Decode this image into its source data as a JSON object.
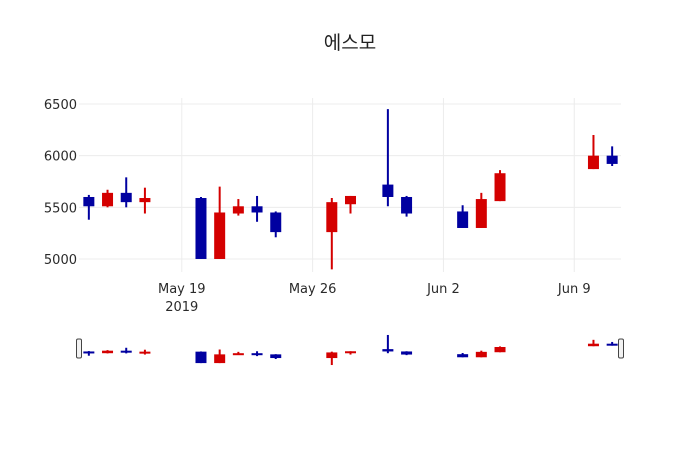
{
  "title": "에스모",
  "colors": {
    "increasing": "#d40000",
    "decreasing": "#0000a0",
    "grid": "#ececec",
    "slider_border": "#444444"
  },
  "chart_data": {
    "type": "candlestick",
    "title": "에스모",
    "xlabel": "",
    "ylabel": "",
    "ylim": [
      4874,
      6558
    ],
    "yticks": [
      5000,
      5500,
      6000,
      6500
    ],
    "xticks": [
      {
        "date": "2019-05-19",
        "label": "May 19",
        "sublabel": "2019"
      },
      {
        "date": "2019-05-26",
        "label": "May 26",
        "sublabel": ""
      },
      {
        "date": "2019-06-02",
        "label": "Jun 2",
        "sublabel": ""
      },
      {
        "date": "2019-06-09",
        "label": "Jun 9",
        "sublabel": ""
      }
    ],
    "xrange": [
      "2019-05-13T12:00",
      "2019-06-11T12:00"
    ],
    "grid": true,
    "legend": false,
    "rangeslider": true,
    "candles": [
      {
        "date": "2019-05-14",
        "open": 5600,
        "high": 5620,
        "low": 5380,
        "close": 5510
      },
      {
        "date": "2019-05-15",
        "open": 5510,
        "high": 5670,
        "low": 5500,
        "close": 5640
      },
      {
        "date": "2019-05-16",
        "open": 5640,
        "high": 5790,
        "low": 5500,
        "close": 5550
      },
      {
        "date": "2019-05-17",
        "open": 5550,
        "high": 5690,
        "low": 5440,
        "close": 5590
      },
      {
        "date": "2019-05-20",
        "open": 5590,
        "high": 5600,
        "low": 5000,
        "close": 5000
      },
      {
        "date": "2019-05-21",
        "open": 5000,
        "high": 5700,
        "low": 5000,
        "close": 5450
      },
      {
        "date": "2019-05-22",
        "open": 5440,
        "high": 5580,
        "low": 5420,
        "close": 5510
      },
      {
        "date": "2019-05-23",
        "open": 5510,
        "high": 5610,
        "low": 5360,
        "close": 5450
      },
      {
        "date": "2019-05-24",
        "open": 5450,
        "high": 5460,
        "low": 5210,
        "close": 5260
      },
      {
        "date": "2019-05-27",
        "open": 5260,
        "high": 5590,
        "low": 4900,
        "close": 5550
      },
      {
        "date": "2019-05-28",
        "open": 5530,
        "high": 5610,
        "low": 5440,
        "close": 5610
      },
      {
        "date": "2019-05-30",
        "open": 5720,
        "high": 6450,
        "low": 5510,
        "close": 5600
      },
      {
        "date": "2019-05-31",
        "open": 5600,
        "high": 5610,
        "low": 5410,
        "close": 5440
      },
      {
        "date": "2019-06-03",
        "open": 5460,
        "high": 5520,
        "low": 5300,
        "close": 5300
      },
      {
        "date": "2019-06-04",
        "open": 5300,
        "high": 5640,
        "low": 5300,
        "close": 5580
      },
      {
        "date": "2019-06-05",
        "open": 5560,
        "high": 5860,
        "low": 5560,
        "close": 5830
      },
      {
        "date": "2019-06-10",
        "open": 5870,
        "high": 6200,
        "low": 5870,
        "close": 6000
      },
      {
        "date": "2019-06-11",
        "open": 6000,
        "high": 6090,
        "low": 5900,
        "close": 5920
      }
    ]
  }
}
